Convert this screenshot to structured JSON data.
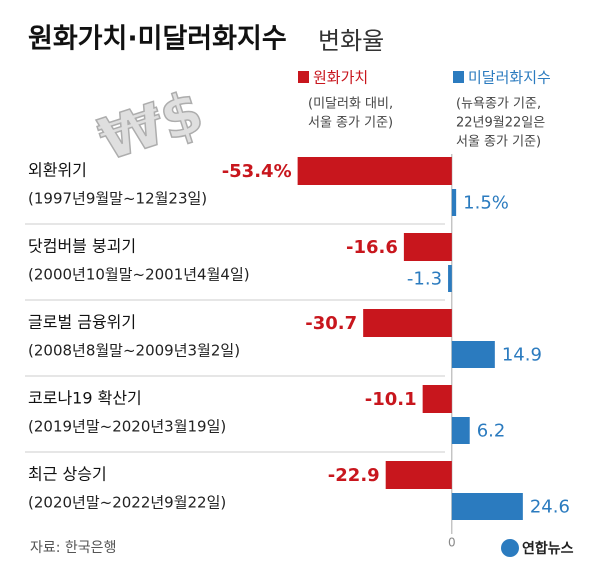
{
  "chart_data": {
    "type": "hbar_groups",
    "title": "원화가치·미달러화지수",
    "title_suffix": "변화율",
    "categories": [
      "외환위기",
      "닷컴버블 붕괴기",
      "글로벌 금융위기",
      "코로나19 확산기",
      "최근 상승기"
    ],
    "periods": [
      "(1997년9월말~12월23일)",
      "(2000년10월말~2001년4월4일)",
      "(2008년8월말~2009년3월2일)",
      "(2019년말~2020년3월19일)",
      "(2020년말~2022년9월22일)"
    ],
    "series": [
      {
        "name": "원화가치",
        "color": "#c8161d",
        "note": [
          "(미달러화 대비,",
          "서울 종가 기준)"
        ],
        "values": [
          -53.4,
          -16.6,
          -30.7,
          -10.1,
          -22.9
        ],
        "value_labels": [
          "-53.4%",
          "-16.6",
          "-30.7",
          "-10.1",
          "-22.9"
        ]
      },
      {
        "name": "미달러화지수",
        "color": "#2b7bbf",
        "note": [
          "(뉴욕종가 기준,",
          "22년9월22일은",
          "서울 종가 기준)"
        ],
        "values": [
          1.5,
          -1.3,
          14.9,
          6.2,
          24.6
        ],
        "value_labels": [
          "1.5%",
          "-1.3",
          "14.9",
          "6.2",
          "24.6"
        ]
      }
    ],
    "xlim": [
      -55,
      25
    ],
    "xticks": [
      0
    ],
    "source": "자료: 한국은행",
    "logo": "연합뉴스"
  }
}
